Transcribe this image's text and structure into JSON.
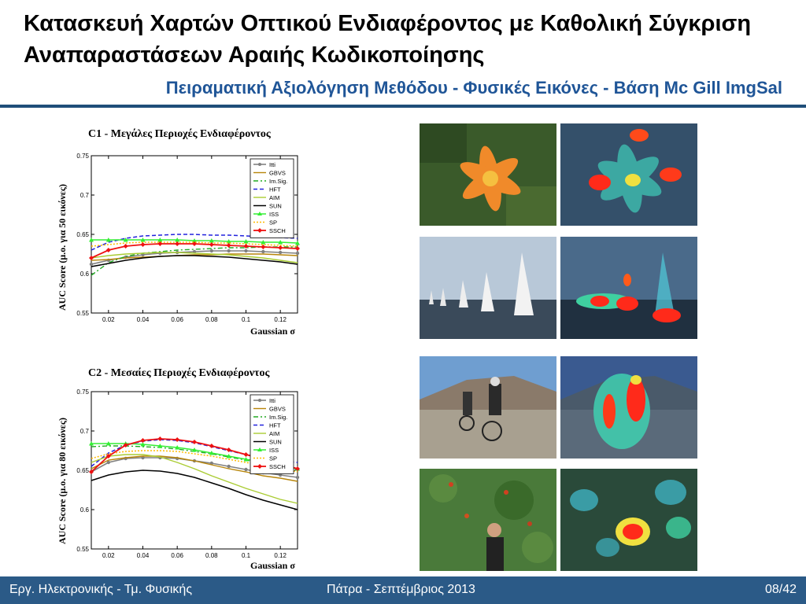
{
  "slide": {
    "title": "Κατασκευή Χαρτών Οπτικού Ενδιαφέροντος με Καθολική Σύγκριση Αναπαραστάσεων Αραιής Κωδικοποίησης",
    "subtitle": "Πειραματική Αξιολόγηση Μεθόδου - Φυσικές Εικόνες - Βάση Mc Gill ImgSal"
  },
  "footer": {
    "left": "Εργ. Ηλεκτρονικής - Τμ. Φυσικής",
    "center": "Πάτρα - Σεπτέμβριος 2013",
    "right": "08/42"
  },
  "photos": [
    {
      "name": "lily"
    },
    {
      "name": "lily-saliency"
    },
    {
      "name": "sailboats"
    },
    {
      "name": "sailboats-saliency"
    },
    {
      "name": "cyclists"
    },
    {
      "name": "cyclists-saliency"
    },
    {
      "name": "orchard"
    },
    {
      "name": "orchard-saliency"
    }
  ],
  "colors": {
    "Itti": "#808080",
    "GBVS": "#b8860b",
    "Im.Sig.": "#22aa22",
    "HFT": "#2222dd",
    "AIM": "#aacc33",
    "SUN": "#000000",
    "ISS": "#33ee33",
    "SP": "#ffbb00",
    "SSCH": "#ee1111"
  },
  "chart_data": [
    {
      "type": "line",
      "title": "C1 - Μεγάλες Περιοχές Ενδιαφέροντος",
      "xlabel": "Gaussian σ",
      "ylabel": "AUC Score   (μ.ο. για 50 εικόνες)",
      "xlim": [
        0.01,
        0.13
      ],
      "ylim": [
        0.55,
        0.75
      ],
      "xticks": [
        "0.02",
        "0.04",
        "0.06",
        "0.08",
        "0.1",
        "0.12"
      ],
      "yticks": [
        "0.55",
        "0.6",
        "0.65",
        "0.7",
        "0.75"
      ],
      "grid": false,
      "legend": "top-right",
      "x": [
        0.01,
        0.02,
        0.03,
        0.04,
        0.05,
        0.06,
        0.07,
        0.08,
        0.09,
        0.1,
        0.11,
        0.12,
        0.13
      ],
      "series": [
        {
          "name": "Itti",
          "values": [
            0.612,
            0.617,
            0.621,
            0.624,
            0.626,
            0.627,
            0.628,
            0.629,
            0.629,
            0.629,
            0.628,
            0.627,
            0.626
          ]
        },
        {
          "name": "GBVS",
          "values": [
            0.617,
            0.618,
            0.62,
            0.621,
            0.622,
            0.623,
            0.624,
            0.624,
            0.625,
            0.625,
            0.625,
            0.624,
            0.623
          ]
        },
        {
          "name": "Im.Sig.",
          "values": [
            0.598,
            0.614,
            0.622,
            0.626,
            0.628,
            0.63,
            0.631,
            0.632,
            0.633,
            0.633,
            0.634,
            0.634,
            0.634
          ]
        },
        {
          "name": "HFT",
          "values": [
            0.63,
            0.64,
            0.645,
            0.648,
            0.649,
            0.65,
            0.65,
            0.649,
            0.649,
            0.648,
            0.647,
            0.646,
            0.645
          ]
        },
        {
          "name": "AIM",
          "values": [
            0.62,
            0.623,
            0.625,
            0.626,
            0.627,
            0.627,
            0.626,
            0.625,
            0.624,
            0.622,
            0.62,
            0.617,
            0.614
          ]
        },
        {
          "name": "SUN",
          "values": [
            0.609,
            0.613,
            0.617,
            0.62,
            0.622,
            0.623,
            0.623,
            0.622,
            0.621,
            0.619,
            0.617,
            0.615,
            0.612
          ]
        },
        {
          "name": "ISS",
          "values": [
            0.643,
            0.643,
            0.643,
            0.643,
            0.643,
            0.643,
            0.642,
            0.642,
            0.641,
            0.641,
            0.64,
            0.64,
            0.639
          ]
        },
        {
          "name": "SP",
          "values": [
            0.635,
            0.637,
            0.639,
            0.64,
            0.64,
            0.64,
            0.64,
            0.639,
            0.639,
            0.638,
            0.637,
            0.636,
            0.635
          ]
        },
        {
          "name": "SSCH",
          "values": [
            0.62,
            0.63,
            0.635,
            0.637,
            0.638,
            0.638,
            0.638,
            0.637,
            0.636,
            0.635,
            0.634,
            0.633,
            0.632
          ]
        }
      ]
    },
    {
      "type": "line",
      "title": "C2 - Μεσαίες Περιοχές Ενδιαφέροντος",
      "xlabel": "Gaussian σ",
      "ylabel": "AUC Score   (μ.ο. για 80 εικόνες)",
      "xlim": [
        0.01,
        0.13
      ],
      "ylim": [
        0.55,
        0.75
      ],
      "xticks": [
        "0.02",
        "0.04",
        "0.06",
        "0.08",
        "0.1",
        "0.12"
      ],
      "yticks": [
        "0.55",
        "0.6",
        "0.65",
        "0.7",
        "0.75"
      ],
      "grid": false,
      "legend": "top-right",
      "x": [
        0.01,
        0.02,
        0.03,
        0.04,
        0.05,
        0.06,
        0.07,
        0.08,
        0.09,
        0.1,
        0.11,
        0.12,
        0.13
      ],
      "series": [
        {
          "name": "Itti",
          "values": [
            0.648,
            0.66,
            0.665,
            0.666,
            0.666,
            0.665,
            0.662,
            0.659,
            0.655,
            0.651,
            0.647,
            0.644,
            0.641
          ]
        },
        {
          "name": "GBVS",
          "values": [
            0.652,
            0.663,
            0.666,
            0.668,
            0.668,
            0.666,
            0.662,
            0.657,
            0.652,
            0.648,
            0.643,
            0.64,
            0.636
          ]
        },
        {
          "name": "Im.Sig.",
          "values": [
            0.68,
            0.681,
            0.681,
            0.68,
            0.679,
            0.677,
            0.674,
            0.671,
            0.667,
            0.663,
            0.659,
            0.655,
            0.651
          ]
        },
        {
          "name": "HFT",
          "values": [
            0.655,
            0.672,
            0.682,
            0.687,
            0.689,
            0.688,
            0.685,
            0.68,
            0.675,
            0.67,
            0.666,
            0.662,
            0.66
          ]
        },
        {
          "name": "AIM",
          "values": [
            0.66,
            0.668,
            0.67,
            0.67,
            0.667,
            0.66,
            0.652,
            0.643,
            0.635,
            0.627,
            0.62,
            0.613,
            0.608
          ]
        },
        {
          "name": "SUN",
          "values": [
            0.637,
            0.644,
            0.648,
            0.65,
            0.649,
            0.646,
            0.641,
            0.634,
            0.627,
            0.619,
            0.612,
            0.606,
            0.6
          ]
        },
        {
          "name": "ISS",
          "values": [
            0.684,
            0.684,
            0.684,
            0.683,
            0.681,
            0.679,
            0.676,
            0.672,
            0.668,
            0.664,
            0.66,
            0.656,
            0.652
          ]
        },
        {
          "name": "SP",
          "values": [
            0.665,
            0.671,
            0.674,
            0.675,
            0.675,
            0.674,
            0.671,
            0.668,
            0.664,
            0.66,
            0.656,
            0.652,
            0.648
          ]
        },
        {
          "name": "SSCH",
          "values": [
            0.648,
            0.668,
            0.682,
            0.688,
            0.69,
            0.689,
            0.686,
            0.681,
            0.676,
            0.67,
            0.664,
            0.658,
            0.652
          ]
        }
      ]
    }
  ]
}
